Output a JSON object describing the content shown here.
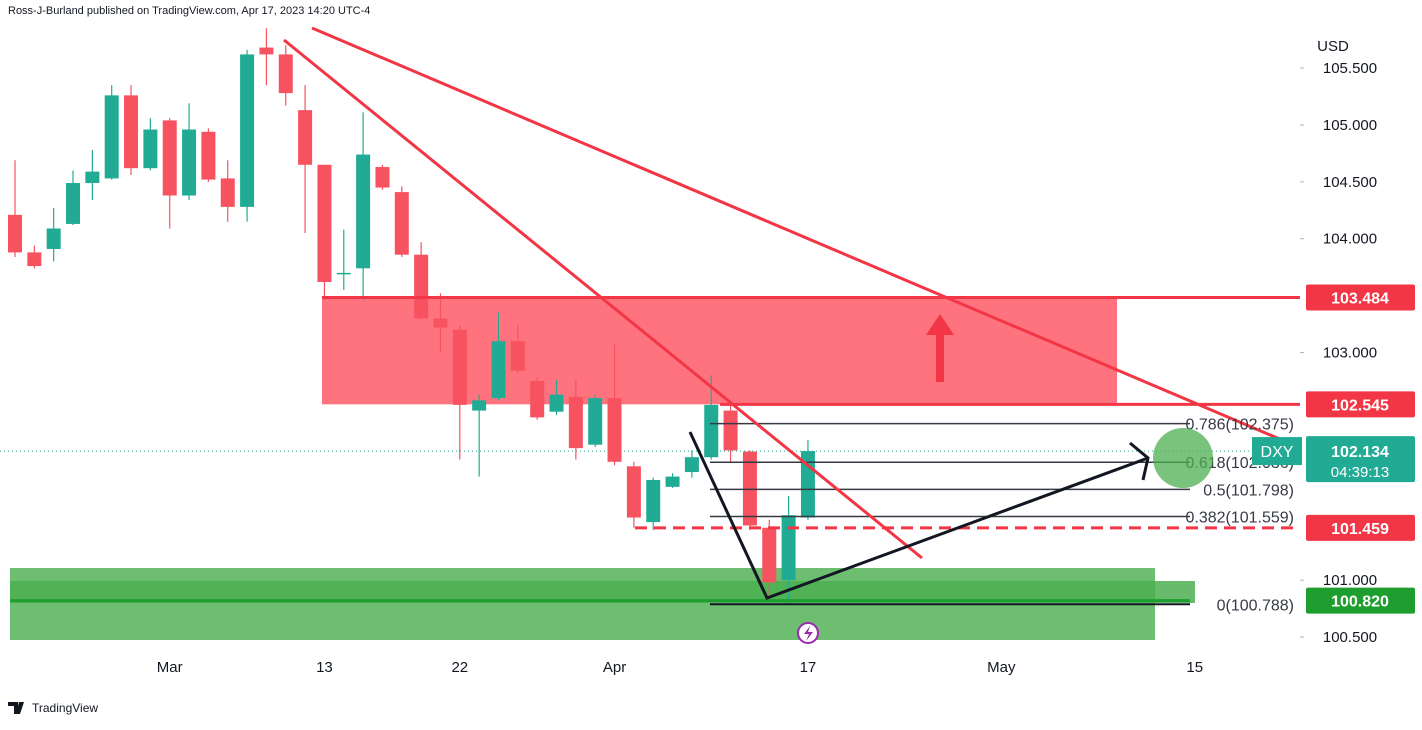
{
  "header": "Ross-J-Burland published on TradingView.com, Apr 17, 2023 14:20 UTC-4",
  "footer": "TradingView",
  "chart_data": {
    "type": "candlestick",
    "currency": "USD",
    "up_color": "#22ab94",
    "down_color": "#f7525f",
    "categories": [
      null,
      null,
      null,
      null,
      null,
      null,
      null,
      null,
      "Mar",
      null,
      null,
      null,
      null,
      null,
      null,
      null,
      "13",
      null,
      null,
      null,
      null,
      null,
      null,
      "22",
      null,
      null,
      null,
      null,
      null,
      null,
      null,
      "Apr",
      null,
      null,
      null,
      null,
      null,
      null,
      null,
      null,
      null,
      "17",
      null,
      null,
      null,
      null,
      null,
      null,
      null,
      null,
      null,
      "May",
      null,
      null,
      null,
      null,
      null,
      null,
      null,
      null,
      null,
      "15"
    ],
    "open": [
      104.21,
      103.88,
      103.91,
      104.13,
      104.49,
      104.53,
      105.26,
      104.62,
      105.04,
      104.38,
      104.94,
      104.53,
      104.28,
      105.68,
      105.62,
      105.13,
      104.65,
      103.69,
      103.74,
      104.63,
      104.41,
      103.86,
      103.3,
      103.2,
      102.49,
      102.6,
      103.1,
      102.75,
      102.48,
      102.61,
      102.19,
      102.6,
      102.0,
      101.51,
      101.82,
      101.95,
      102.08,
      102.49,
      102.13,
      101.46,
      101.0,
      101.55,
      null,
      null,
      null,
      null,
      null,
      null,
      null,
      null,
      null,
      null,
      null,
      null,
      null,
      null,
      null,
      null,
      null,
      null,
      null,
      null
    ],
    "high": [
      104.69,
      103.94,
      104.27,
      104.6,
      104.78,
      105.35,
      105.35,
      105.06,
      105.06,
      105.19,
      104.97,
      104.69,
      105.66,
      105.85,
      105.7,
      105.35,
      104.65,
      104.08,
      105.11,
      104.65,
      104.46,
      103.97,
      103.52,
      103.24,
      102.63,
      103.35,
      103.24,
      102.78,
      102.76,
      102.76,
      102.63,
      103.07,
      102.04,
      101.9,
      101.94,
      102.14,
      102.8,
      102.54,
      102.14,
      101.53,
      101.74,
      102.23,
      null,
      null,
      null,
      null,
      null,
      null,
      null,
      null,
      null,
      null,
      null,
      null,
      null,
      null,
      null,
      null,
      null,
      null,
      null,
      null
    ],
    "low": [
      103.84,
      103.74,
      103.8,
      104.12,
      104.34,
      104.52,
      104.56,
      104.6,
      104.09,
      104.34,
      104.5,
      104.15,
      104.15,
      105.35,
      105.17,
      104.05,
      103.46,
      103.55,
      103.46,
      104.43,
      103.84,
      103.29,
      103.0,
      102.06,
      101.91,
      102.58,
      102.82,
      102.41,
      102.45,
      102.06,
      102.17,
      102.01,
      101.46,
      101.44,
      101.81,
      101.9,
      102.06,
      102.04,
      101.44,
      100.82,
      100.78,
      101.53,
      null,
      null,
      null,
      null,
      null,
      null,
      null,
      null,
      null,
      null,
      null,
      null,
      null,
      null,
      null,
      null,
      null,
      null,
      null,
      null
    ],
    "close": [
      103.88,
      103.76,
      104.09,
      104.49,
      104.59,
      105.26,
      104.62,
      104.96,
      104.38,
      104.96,
      104.52,
      104.28,
      105.62,
      105.62,
      105.28,
      104.65,
      103.62,
      103.7,
      104.74,
      104.45,
      103.86,
      103.3,
      103.22,
      102.54,
      102.58,
      103.1,
      102.84,
      102.43,
      102.63,
      102.16,
      102.6,
      102.04,
      101.55,
      101.88,
      101.91,
      102.08,
      102.54,
      102.14,
      101.48,
      100.98,
      101.57,
      102.134,
      null,
      null,
      null,
      null,
      null,
      null,
      null,
      null,
      null,
      null,
      null,
      null,
      null,
      null,
      null,
      null,
      null,
      null,
      null,
      null
    ],
    "ylim": [
      100.386,
      106.098
    ],
    "yticks": [
      {
        "value": 105.5,
        "label": "105.500"
      },
      {
        "value": 105,
        "label": "105.000"
      },
      {
        "value": 104.5,
        "label": "104.500"
      },
      {
        "value": 104,
        "label": "104.000"
      },
      {
        "value": 103,
        "label": "103.000"
      },
      {
        "value": 101,
        "label": "101.000"
      },
      {
        "value": 100.5,
        "label": "100.500"
      }
    ],
    "last_price": {
      "symbol": "DXY",
      "value": 102.134,
      "countdown": "04:39:13",
      "color": "#22ab94"
    },
    "levels": [
      {
        "value": 103.484,
        "label": "103.484",
        "color": "#f23645",
        "style": "solid"
      },
      {
        "value": 102.545,
        "label": "102.545",
        "color": "#f23645",
        "style": "solid"
      },
      {
        "value": 101.459,
        "label": "101.459",
        "color": "#f23645",
        "style": "dashed"
      },
      {
        "value": 100.82,
        "label": "100.820",
        "color": "#1e9e2e",
        "style": "solid"
      }
    ],
    "zone_color": "#ff6b78",
    "fib_levels": [
      {
        "value": 102.375,
        "label": "0.786(102.375)"
      },
      {
        "value": 102.036,
        "label": "0.618(102.036)"
      },
      {
        "value": 101.798,
        "label": "0.5(101.798)"
      },
      {
        "value": 101.559,
        "label": "0.382(101.559)"
      },
      {
        "value": 100.788,
        "label": "0(100.788)"
      }
    ]
  }
}
